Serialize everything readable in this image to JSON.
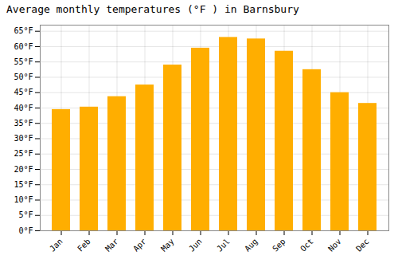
{
  "chart_data": {
    "type": "bar",
    "title": "Average monthly temperatures (°F ) in Barnsbury",
    "categories": [
      "Jan",
      "Feb",
      "Mar",
      "Apr",
      "May",
      "Jun",
      "Jul",
      "Aug",
      "Sep",
      "Oct",
      "Nov",
      "Dec"
    ],
    "values": [
      39.5,
      40.3,
      43.7,
      47.5,
      54.0,
      59.5,
      63.0,
      62.5,
      58.5,
      52.5,
      45.0,
      41.5
    ],
    "color": "#FFAE00",
    "ylim": [
      0,
      67
    ],
    "yticks": [
      {
        "value": 0,
        "label": "0°F"
      },
      {
        "value": 5,
        "label": "5°F"
      },
      {
        "value": 10,
        "label": "10°F"
      },
      {
        "value": 15,
        "label": "15°F"
      },
      {
        "value": 20,
        "label": "20°F"
      },
      {
        "value": 25,
        "label": "25°F"
      },
      {
        "value": 30,
        "label": "30°F"
      },
      {
        "value": 35,
        "label": "35°F"
      },
      {
        "value": 40,
        "label": "40°F"
      },
      {
        "value": 45,
        "label": "45°F"
      },
      {
        "value": 50,
        "label": "50°F"
      },
      {
        "value": 55,
        "label": "55°F"
      },
      {
        "value": 60,
        "label": "60°F"
      },
      {
        "value": 65,
        "label": "65°F"
      }
    ],
    "grid": true
  }
}
